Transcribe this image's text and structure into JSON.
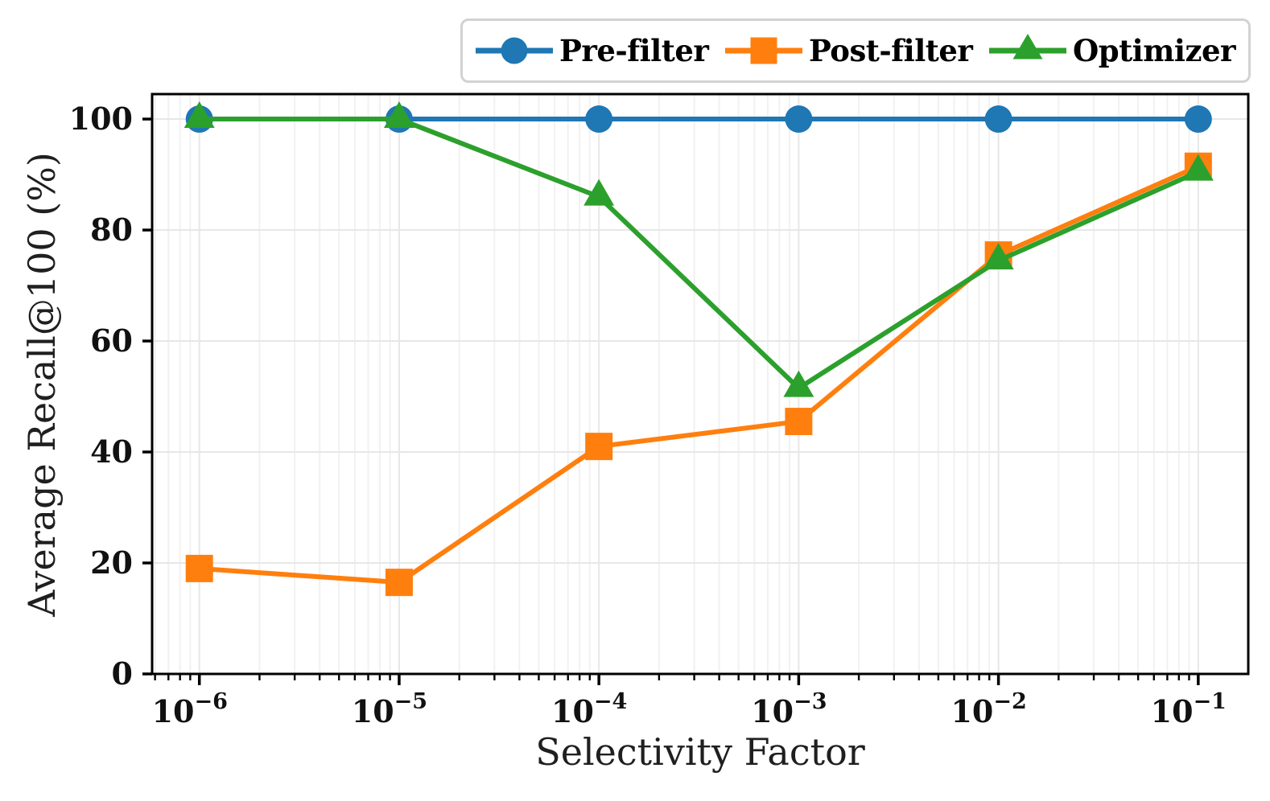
{
  "figure": {
    "background": "#ffffff"
  },
  "chart_data": {
    "type": "line",
    "title": "",
    "xlabel": "Selectivity Factor",
    "ylabel": "Average Recall@100 (%)",
    "x_scale": "log",
    "grid": true,
    "legend_position": "top-right",
    "x": [
      1e-06,
      1e-05,
      0.0001,
      0.001,
      0.01,
      0.1
    ],
    "x_tick_labels": [
      {
        "base": "10",
        "exp": "−6"
      },
      {
        "base": "10",
        "exp": "−5"
      },
      {
        "base": "10",
        "exp": "−4"
      },
      {
        "base": "10",
        "exp": "−3"
      },
      {
        "base": "10",
        "exp": "−2"
      },
      {
        "base": "10",
        "exp": "−1"
      }
    ],
    "xlim": [
      5.8e-07,
      0.178
    ],
    "y_ticks": [
      0,
      20,
      40,
      60,
      80,
      100
    ],
    "ylim": [
      0,
      104.5
    ],
    "series": [
      {
        "name": "Pre-filter",
        "marker": "circle",
        "color": "#1f77b4",
        "values": [
          100,
          100,
          100,
          100,
          100,
          100
        ]
      },
      {
        "name": "Post-filter",
        "marker": "square",
        "color": "#ff7f0e",
        "values": [
          19,
          16.5,
          41,
          45.5,
          75.5,
          91.5
        ]
      },
      {
        "name": "Optimizer",
        "marker": "triangle",
        "color": "#2ca02c",
        "values": [
          100,
          100,
          86,
          51.5,
          74.5,
          90.5
        ]
      }
    ]
  },
  "styles": {
    "spine_color": "#000000",
    "grid_major_color": "#e7e7e7",
    "grid_minor_color": "#f1f1f1",
    "tick_color": "#000000",
    "tick_label_color": "#111111",
    "axis_label_color": "#1f1f1f",
    "legend_border_color": "#d2d2d2",
    "legend_background": "#ffffff"
  }
}
